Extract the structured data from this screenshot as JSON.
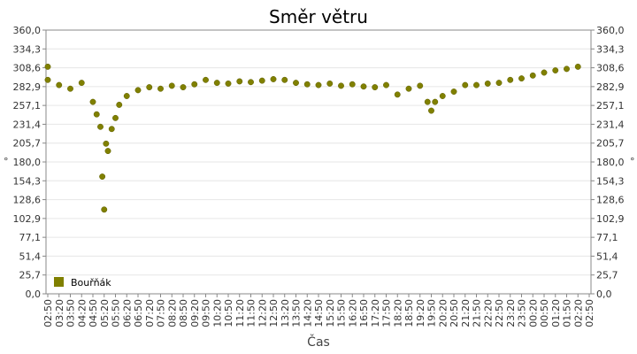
{
  "chart_data": {
    "type": "scatter",
    "title": "Směr větru",
    "xlabel": "Čas",
    "ylabel": "°",
    "ylim": [
      0,
      360
    ],
    "y_ticks": [
      "0,0",
      "25,7",
      "51,4",
      "77,1",
      "102,9",
      "128,6",
      "154,3",
      "180,0",
      "205,7",
      "231,4",
      "257,1",
      "282,9",
      "308,6",
      "334,3",
      "360,0"
    ],
    "x_ticks": [
      "02:50",
      "03:20",
      "03:50",
      "04:20",
      "04:50",
      "05:20",
      "05:50",
      "06:20",
      "06:50",
      "07:20",
      "07:50",
      "08:20",
      "08:50",
      "09:20",
      "09:50",
      "10:20",
      "10:50",
      "11:20",
      "11:50",
      "12:20",
      "12:50",
      "13:20",
      "13:50",
      "14:20",
      "14:50",
      "15:20",
      "15:50",
      "16:20",
      "16:50",
      "17:20",
      "17:50",
      "18:20",
      "18:50",
      "19:20",
      "19:50",
      "20:20",
      "20:50",
      "21:20",
      "21:50",
      "22:20",
      "22:50",
      "23:20",
      "23:50",
      "00:20",
      "00:50",
      "01:20",
      "01:50",
      "02:20",
      "02:50"
    ],
    "grid": true,
    "legend_position": "bottom-left",
    "series": [
      {
        "name": "Bouřňák",
        "color": "#808000",
        "x": [
          "02:50",
          "03:20",
          "03:50",
          "04:20",
          "04:50",
          "05:00",
          "05:10",
          "05:15",
          "05:20",
          "05:25",
          "05:30",
          "05:40",
          "05:50",
          "06:00",
          "06:20",
          "06:50",
          "07:20",
          "07:50",
          "08:20",
          "08:50",
          "09:20",
          "09:50",
          "10:20",
          "10:50",
          "11:20",
          "11:50",
          "12:20",
          "12:50",
          "13:20",
          "13:50",
          "14:20",
          "14:50",
          "15:20",
          "15:50",
          "16:20",
          "16:50",
          "17:20",
          "17:50",
          "18:20",
          "18:50",
          "19:20",
          "19:40",
          "19:50",
          "20:00",
          "20:20",
          "20:50",
          "21:20",
          "21:50",
          "22:20",
          "22:50",
          "23:20",
          "23:50",
          "00:20",
          "00:50",
          "01:20",
          "01:50",
          "02:20",
          "02:50"
        ],
        "y": [
          292,
          285,
          280,
          288,
          262,
          245,
          228,
          160,
          115,
          205,
          195,
          225,
          240,
          258,
          270,
          278,
          282,
          280,
          284,
          282,
          286,
          292,
          288,
          287,
          290,
          289,
          291,
          293,
          292,
          288,
          286,
          285,
          287,
          284,
          286,
          283,
          282,
          285,
          272,
          280,
          284,
          262,
          250,
          262,
          270,
          276,
          285,
          285,
          287,
          288,
          292,
          294,
          298,
          302,
          305,
          307,
          310,
          310
        ]
      }
    ]
  }
}
